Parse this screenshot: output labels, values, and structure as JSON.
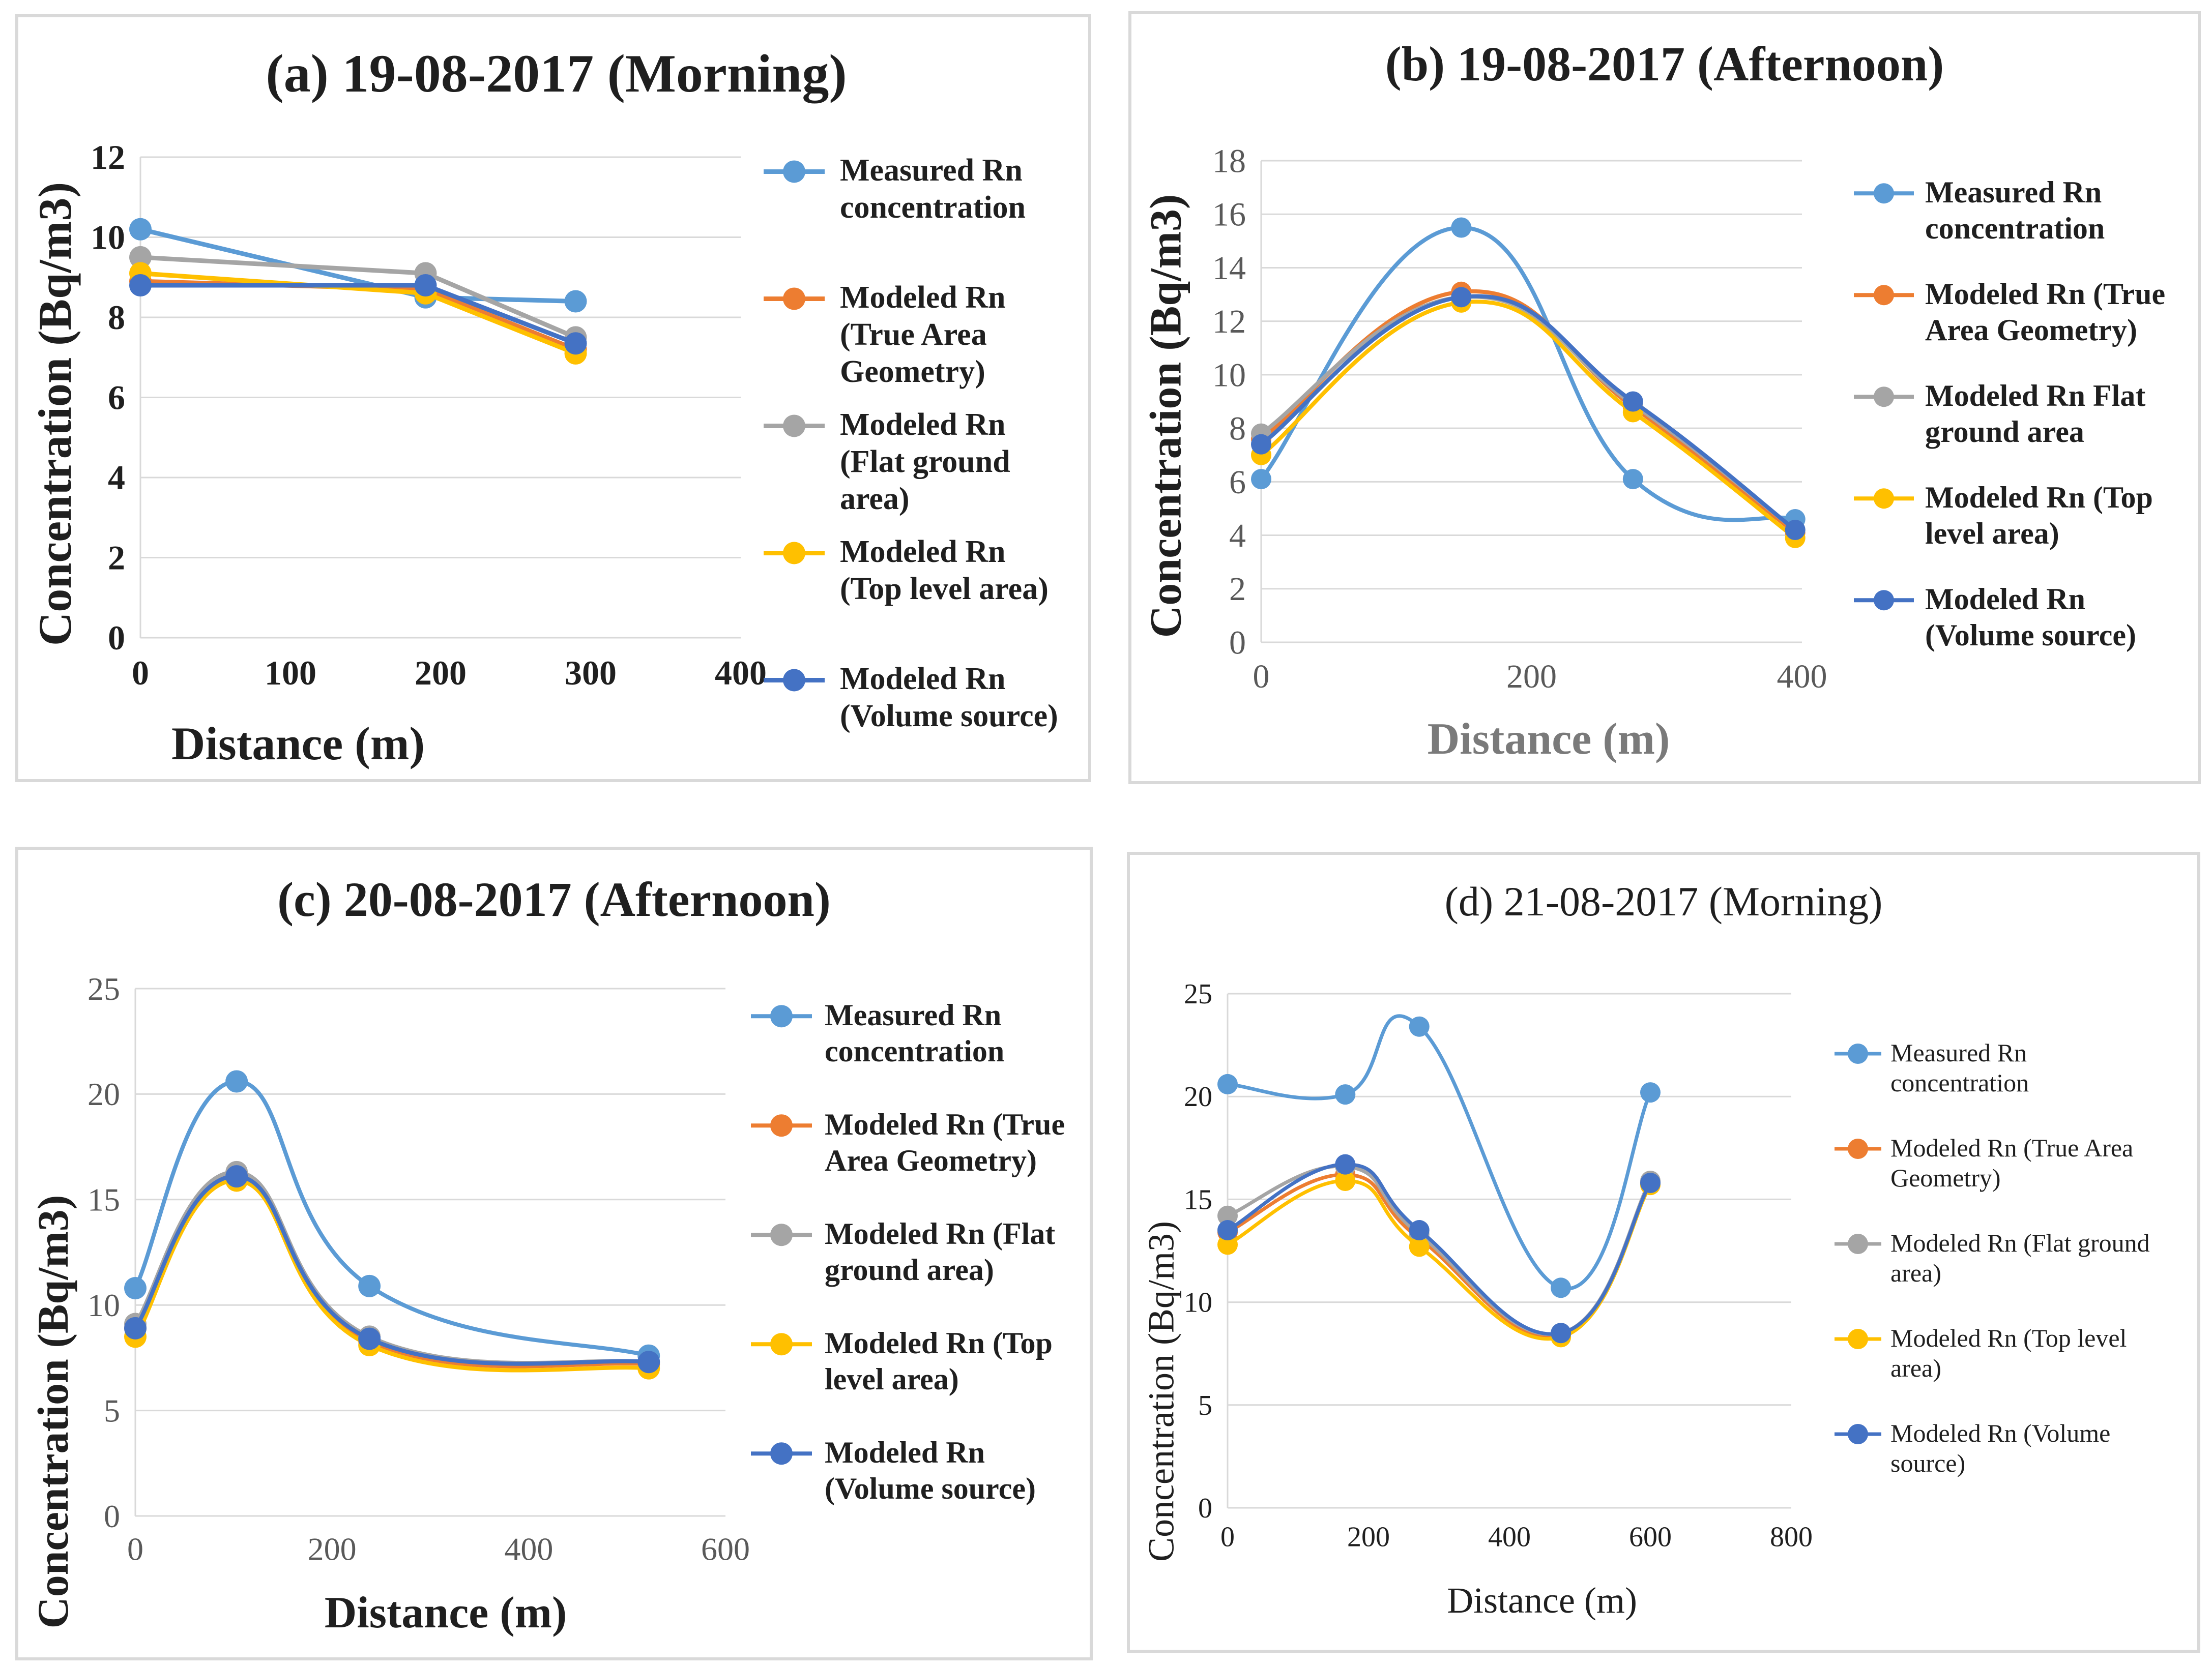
{
  "colors": {
    "measured": "#5b9bd5",
    "true_area": "#ed7d31",
    "flat_ground": "#a5a5a5",
    "top_level": "#ffc000",
    "volume_source": "#4472c4",
    "grid": "#d9d9d9",
    "axis_text": "#595959"
  },
  "chart_data": [
    {
      "id": "a",
      "type": "line",
      "title": "(a) 19-08-2017  (Morning)",
      "xlabel": "Distance (m)",
      "ylabel": "Concentration (Bq/m3)",
      "xlim": [
        0,
        400
      ],
      "ylim": [
        0,
        12
      ],
      "xticks": [
        "0",
        "100",
        "200",
        "300",
        "400"
      ],
      "yticks": [
        "0",
        "2",
        "4",
        "6",
        "8",
        "10",
        "12"
      ],
      "grid": true,
      "smooth": false,
      "legend_position": "right",
      "x": [
        0,
        190,
        290
      ],
      "series": [
        {
          "name": "Measured Rn concentration",
          "legend_lines": [
            "Measured Rn",
            "concentration"
          ],
          "color_key": "measured",
          "values": [
            10.2,
            8.5,
            8.4
          ]
        },
        {
          "name": "Modeled Rn (True Area Geometry)",
          "legend_lines": [
            "Modeled Rn",
            "(True Area",
            "Geometry)"
          ],
          "color_key": "true_area",
          "values": [
            8.9,
            8.7,
            7.2
          ]
        },
        {
          "name": "Modeled Rn (Flat ground area)",
          "legend_lines": [
            "Modeled Rn",
            "(Flat ground",
            "area)"
          ],
          "color_key": "flat_ground",
          "values": [
            9.5,
            9.1,
            7.5
          ]
        },
        {
          "name": "Modeled Rn (Top level area)",
          "legend_lines": [
            "Modeled Rn",
            "(Top level area)"
          ],
          "color_key": "top_level",
          "values": [
            9.1,
            8.6,
            7.1
          ]
        },
        {
          "name": "Modeled Rn (Volume source)",
          "legend_lines": [
            "Modeled Rn",
            "(Volume source)"
          ],
          "color_key": "volume_source",
          "values": [
            8.8,
            8.8,
            7.35
          ]
        }
      ]
    },
    {
      "id": "b",
      "type": "line",
      "title": "(b) 19-08-2017  (Afternoon)",
      "xlabel": "Distance (m)",
      "ylabel": "Concentration (Bq/m3)",
      "xlim": [
        0,
        400
      ],
      "ylim": [
        0,
        18
      ],
      "xticks": [
        "0",
        "200",
        "400"
      ],
      "yticks": [
        "0",
        "2",
        "4",
        "6",
        "8",
        "10",
        "12",
        "14",
        "16",
        "18"
      ],
      "grid": true,
      "smooth": true,
      "legend_position": "right",
      "x": [
        0,
        148,
        275,
        395
      ],
      "series": [
        {
          "name": "Measured Rn concentration",
          "legend_lines": [
            "Measured Rn",
            "concentration"
          ],
          "color_key": "measured",
          "values": [
            6.1,
            15.5,
            6.1,
            4.6
          ]
        },
        {
          "name": "Modeled Rn (True Area Geometry)",
          "legend_lines": [
            "Modeled Rn (True",
            "Area Geometry)"
          ],
          "color_key": "true_area",
          "values": [
            7.6,
            13.1,
            8.8,
            4.1
          ]
        },
        {
          "name": "Modeled Rn Flat ground area",
          "legend_lines": [
            "Modeled Rn Flat",
            "ground area"
          ],
          "color_key": "flat_ground",
          "values": [
            7.8,
            12.9,
            8.9,
            4.2
          ]
        },
        {
          "name": "Modeled Rn (Top level area)",
          "legend_lines": [
            "Modeled Rn (Top",
            "level area)"
          ],
          "color_key": "top_level",
          "values": [
            7.0,
            12.7,
            8.6,
            3.9
          ]
        },
        {
          "name": "Modeled Rn (Volume source)",
          "legend_lines": [
            "Modeled Rn",
            "(Volume source)"
          ],
          "color_key": "volume_source",
          "values": [
            7.4,
            12.9,
            9.0,
            4.2
          ]
        }
      ]
    },
    {
      "id": "c",
      "type": "line",
      "title": "(c) 20-08-2017  (Afternoon)",
      "xlabel": "Distance (m)",
      "ylabel": "Concentration (Bq/m3)",
      "xlim": [
        0,
        600
      ],
      "ylim": [
        0,
        25
      ],
      "xticks": [
        "0",
        "200",
        "400",
        "600"
      ],
      "yticks": [
        "0",
        "5",
        "10",
        "15",
        "20",
        "25"
      ],
      "grid": true,
      "smooth": true,
      "legend_position": "right",
      "x": [
        0,
        103,
        238,
        522
      ],
      "series": [
        {
          "name": "Measured Rn concentration",
          "legend_lines": [
            "Measured Rn",
            "concentration"
          ],
          "color_key": "measured",
          "values": [
            10.8,
            20.6,
            10.9,
            7.6
          ]
        },
        {
          "name": "Modeled Rn (True Area Geometry)",
          "legend_lines": [
            "Modeled Rn (True",
            "Area Geometry)"
          ],
          "color_key": "true_area",
          "values": [
            8.9,
            16.2,
            8.3,
            7.2
          ]
        },
        {
          "name": "Modeled Rn (Flat ground area)",
          "legend_lines": [
            "Modeled Rn (Flat",
            "ground area)"
          ],
          "color_key": "flat_ground",
          "values": [
            9.1,
            16.3,
            8.5,
            7.3
          ]
        },
        {
          "name": "Modeled Rn (Top level area)",
          "legend_lines": [
            "Modeled Rn (Top",
            "level area)"
          ],
          "color_key": "top_level",
          "values": [
            8.5,
            15.9,
            8.1,
            7.0
          ]
        },
        {
          "name": "Modeled Rn (Volume source)",
          "legend_lines": [
            "Modeled Rn",
            "(Volume source)"
          ],
          "color_key": "volume_source",
          "values": [
            8.9,
            16.1,
            8.4,
            7.3
          ]
        }
      ]
    },
    {
      "id": "d",
      "type": "line",
      "title": "(d) 21-08-2017  (Morning)",
      "xlabel": "Distance (m)",
      "ylabel": "Concentration (Bq/m3)",
      "xlim": [
        0,
        800
      ],
      "ylim": [
        0,
        25
      ],
      "xticks": [
        "0",
        "200",
        "400",
        "600",
        "800"
      ],
      "yticks": [
        "0",
        "5",
        "10",
        "15",
        "20",
        "25"
      ],
      "grid": true,
      "smooth": true,
      "legend_position": "right",
      "x": [
        0,
        167,
        272,
        473,
        600
      ],
      "series": [
        {
          "name": "Measured Rn concentration",
          "legend_lines": [
            "Measured Rn",
            "concentration"
          ],
          "color_key": "measured",
          "values": [
            20.6,
            20.1,
            23.4,
            10.7,
            20.2
          ]
        },
        {
          "name": "Modeled Rn (True Area Geometry)",
          "legend_lines": [
            "Modeled Rn (True Area",
            "Geometry)"
          ],
          "color_key": "true_area",
          "values": [
            13.4,
            16.2,
            13.1,
            8.4,
            15.8
          ]
        },
        {
          "name": "Modeled Rn (Flat ground area)",
          "legend_lines": [
            "Modeled Rn (Flat ground",
            "area)"
          ],
          "color_key": "flat_ground",
          "values": [
            14.2,
            16.6,
            13.3,
            8.5,
            15.9
          ]
        },
        {
          "name": "Modeled Rn (Top level area)",
          "legend_lines": [
            "Modeled Rn (Top level",
            "area)"
          ],
          "color_key": "top_level",
          "values": [
            12.8,
            15.9,
            12.7,
            8.3,
            15.7
          ]
        },
        {
          "name": "Modeled Rn (Volume source)",
          "legend_lines": [
            "Modeled Rn (Volume",
            "source)"
          ],
          "color_key": "volume_source",
          "values": [
            13.5,
            16.7,
            13.5,
            8.5,
            15.8
          ]
        }
      ]
    }
  ]
}
